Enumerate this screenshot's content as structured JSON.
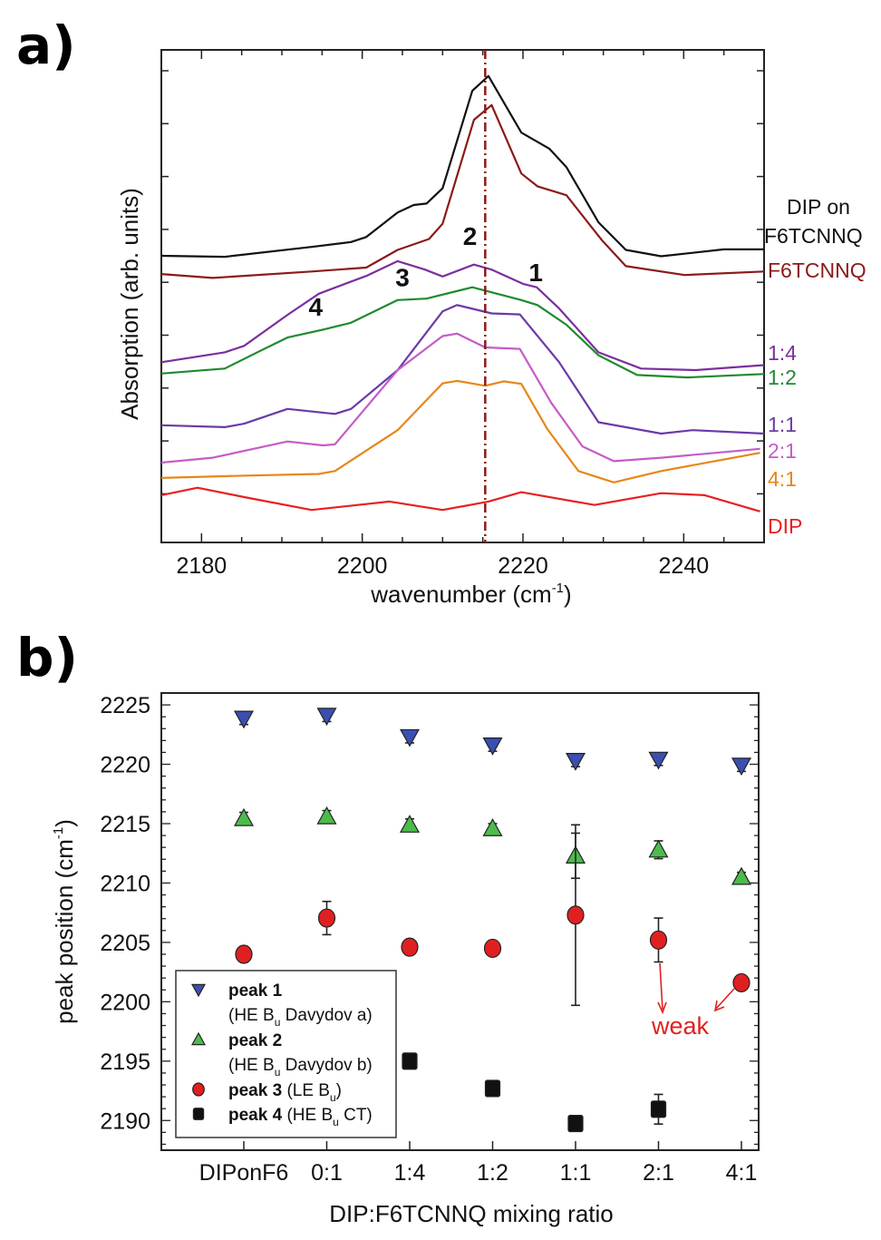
{
  "panel_a_letter": "a)",
  "panel_b_letter": "b)",
  "chart_data": [
    {
      "type": "line",
      "panel": "a)",
      "xlabel": "wavenumber (cm",
      "xlabel_sup": "-1",
      "xlabel_end": ")",
      "ylabel": "Absorption (arb. units)",
      "xlim": [
        2175,
        2250
      ],
      "ylim": [
        0,
        100
      ],
      "xticks": [
        2180,
        2200,
        2220,
        2240
      ],
      "y_tick_labels_shown": false,
      "grid": false,
      "reference_line": {
        "x": 2215.3,
        "style": "dash-dot",
        "color": "#8b1a1a"
      },
      "peak_annotations": [
        {
          "text": "1",
          "x": 2221.6,
          "y": 53
        },
        {
          "text": "2",
          "x": 2213.4,
          "y": 60.4
        },
        {
          "text": "3",
          "x": 2205,
          "y": 52
        },
        {
          "text": "4",
          "x": 2194.2,
          "y": 46
        }
      ],
      "series": [
        {
          "name": "DIP on",
          "name2": "F6TCNNQ",
          "color": "#111111",
          "x": [
            2175,
            2182.9,
            2193.7,
            2198.6,
            2200.5,
            2204.4,
            2206.4,
            2208,
            2210,
            2213.7,
            2215.7,
            2219.8,
            2223.3,
            2225.4,
            2229.4,
            2232.8,
            2237.2,
            2245,
            2250
          ],
          "y": [
            58.2,
            58,
            60,
            61,
            62,
            67,
            68.5,
            68.8,
            71.9,
            91.7,
            94.7,
            83.2,
            79.9,
            76.2,
            65,
            59.4,
            58.1,
            59.5,
            59.5
          ]
        },
        {
          "name": "F6TCNNQ",
          "color": "#8b1a1a",
          "x": [
            2175,
            2181.4,
            2193.7,
            2200.5,
            2204.4,
            2208.3,
            2210,
            2213.9,
            2216.1,
            2219.8,
            2221.8,
            2225.4,
            2229.8,
            2232.8,
            2240.1,
            2250
          ],
          "y": [
            54.5,
            53.7,
            55,
            55.8,
            59.4,
            61.6,
            64.7,
            85.8,
            88.8,
            74.9,
            72.3,
            70.5,
            61.4,
            56.1,
            54.3,
            55
          ]
        },
        {
          "name": "1:4",
          "color": "#7b2f9e",
          "x": [
            2175,
            2182.9,
            2185.3,
            2190.7,
            2194.6,
            2200.5,
            2204.4,
            2207.8,
            2210,
            2213.9,
            2216.1,
            2220,
            2221.7,
            2224.5,
            2229.4,
            2234.7,
            2241.5,
            2250
          ],
          "y": [
            36.6,
            38.6,
            39.9,
            46.2,
            50.5,
            54.1,
            57.1,
            55.4,
            54,
            56.4,
            55.4,
            52.5,
            51.8,
            47.5,
            38.6,
            35.3,
            35,
            36
          ]
        },
        {
          "name": "1:2",
          "color": "#1e8a2e",
          "x": [
            2175,
            2182.9,
            2187.3,
            2190.7,
            2195.1,
            2198.6,
            2204.4,
            2208,
            2213.7,
            2219.8,
            2221.8,
            2225.4,
            2229.4,
            2234.2,
            2240.5,
            2250
          ],
          "y": [
            34.3,
            35.3,
            38.9,
            41.6,
            43.2,
            44.6,
            49.2,
            49.5,
            51.8,
            49.2,
            48.2,
            44.2,
            38,
            34,
            33.5,
            34.2
          ]
        },
        {
          "name": "1:1",
          "color": "#6a3aa8",
          "x": [
            2175,
            2182.9,
            2185.3,
            2190.7,
            2196.6,
            2198.6,
            2204.4,
            2210,
            2211.8,
            2216.1,
            2219.6,
            2224.5,
            2229.4,
            2237.2,
            2241.1,
            2250
          ],
          "y": [
            23.8,
            23.4,
            24.1,
            27.1,
            26.1,
            27.1,
            35,
            46.9,
            48.2,
            46.5,
            46.3,
            36.6,
            24.4,
            22.1,
            22.8,
            22.1
          ]
        },
        {
          "name": "2:1",
          "color": "#c55cc5",
          "x": [
            2175,
            2181.4,
            2190.7,
            2195.1,
            2196.6,
            2204.4,
            2210,
            2211.8,
            2215.3,
            2219.6,
            2223.5,
            2227.4,
            2231.3,
            2237.2,
            2249.5
          ],
          "y": [
            16.2,
            17.2,
            20.5,
            19.7,
            19.9,
            35,
            41.9,
            42.4,
            39.6,
            39.3,
            28.4,
            19.5,
            16.5,
            17.2,
            19
          ]
        },
        {
          "name": "4:1",
          "color": "#e8861a",
          "x": [
            2175,
            2183.9,
            2194.6,
            2196.6,
            2204.4,
            2210,
            2211.8,
            2215.3,
            2217.6,
            2219.8,
            2223,
            2226.9,
            2231.3,
            2237.2,
            2249.5
          ],
          "y": [
            13.1,
            13.5,
            13.9,
            14.5,
            22.8,
            32.3,
            32.8,
            31.8,
            32.7,
            32.2,
            23.1,
            14.5,
            12.2,
            14.5,
            18.2
          ]
        },
        {
          "name": "DIP",
          "color": "#e82020",
          "x": [
            2175,
            2179.5,
            2185.3,
            2193.7,
            2203.4,
            2210,
            2215.7,
            2219.8,
            2228.9,
            2237.2,
            2242.6,
            2249.5
          ],
          "y": [
            9.6,
            11.1,
            9.2,
            6.6,
            8.3,
            6.6,
            8.3,
            10.2,
            7.6,
            10,
            9.6,
            6.3
          ]
        }
      ]
    },
    {
      "type": "scatter",
      "panel": "b)",
      "xlabel": "DIP:F6TCNNQ mixing ratio",
      "ylabel": "peak position (cm",
      "ylabel_sup": "-1",
      "ylabel_end": ")",
      "categories": [
        "DIPonF6",
        "0:1",
        "1:4",
        "1:2",
        "1:1",
        "2:1",
        "4:1"
      ],
      "ylim": [
        2187.5,
        2226
      ],
      "yticks": [
        2190,
        2195,
        2200,
        2205,
        2210,
        2215,
        2220,
        2225
      ],
      "grid": false,
      "legend_position": "bottom-left",
      "series": [
        {
          "name": "peak 1",
          "desc": "(HE B",
          "sub": "u",
          "desc_end": " Davydov a)",
          "marker": "triangle-down",
          "color": "#3a4fb0",
          "values": [
            2223.85,
            2224.1,
            2222.3,
            2221.6,
            2220.3,
            2220.4,
            2219.9
          ],
          "errors": [
            0.5,
            0.5,
            0.5,
            0.5,
            0.5,
            0.5,
            0.5
          ]
        },
        {
          "name": "peak 2",
          "desc": "(HE B",
          "sub": "u",
          "desc_end": " Davydov b)",
          "marker": "triangle-up",
          "color": "#4cbb4c",
          "values": [
            2215.45,
            2215.6,
            2214.9,
            2214.6,
            2212.3,
            2212.8,
            2210.5
          ],
          "errors": [
            0.5,
            0.5,
            0.5,
            0.4,
            1.9,
            0.75,
            0.4
          ]
        },
        {
          "name": "peak 3",
          "desc": "(LE B",
          "sub": "u",
          "desc_end": ")",
          "marker": "circle",
          "color": "#e02020",
          "values": [
            2204.0,
            2207.05,
            2204.6,
            2204.5,
            2207.3,
            2205.2,
            2201.6
          ],
          "errors": [
            0.3,
            1.4,
            0.3,
            0.3,
            7.6,
            1.85,
            0.3
          ]
        },
        {
          "name": "peak 4",
          "desc": "(HE B",
          "sub": "u",
          "desc_end": " CT)",
          "marker": "square",
          "color": "#111111",
          "values": [
            null,
            null,
            2195.0,
            2192.7,
            2189.75,
            2190.95,
            null
          ],
          "errors": [
            null,
            null,
            0.3,
            0.5,
            0.3,
            1.25,
            null
          ]
        }
      ],
      "annotation": {
        "text": "weak",
        "color": "#e02020",
        "points_to": [
          "2:1",
          "4:1"
        ],
        "series": "peak 3"
      }
    }
  ]
}
